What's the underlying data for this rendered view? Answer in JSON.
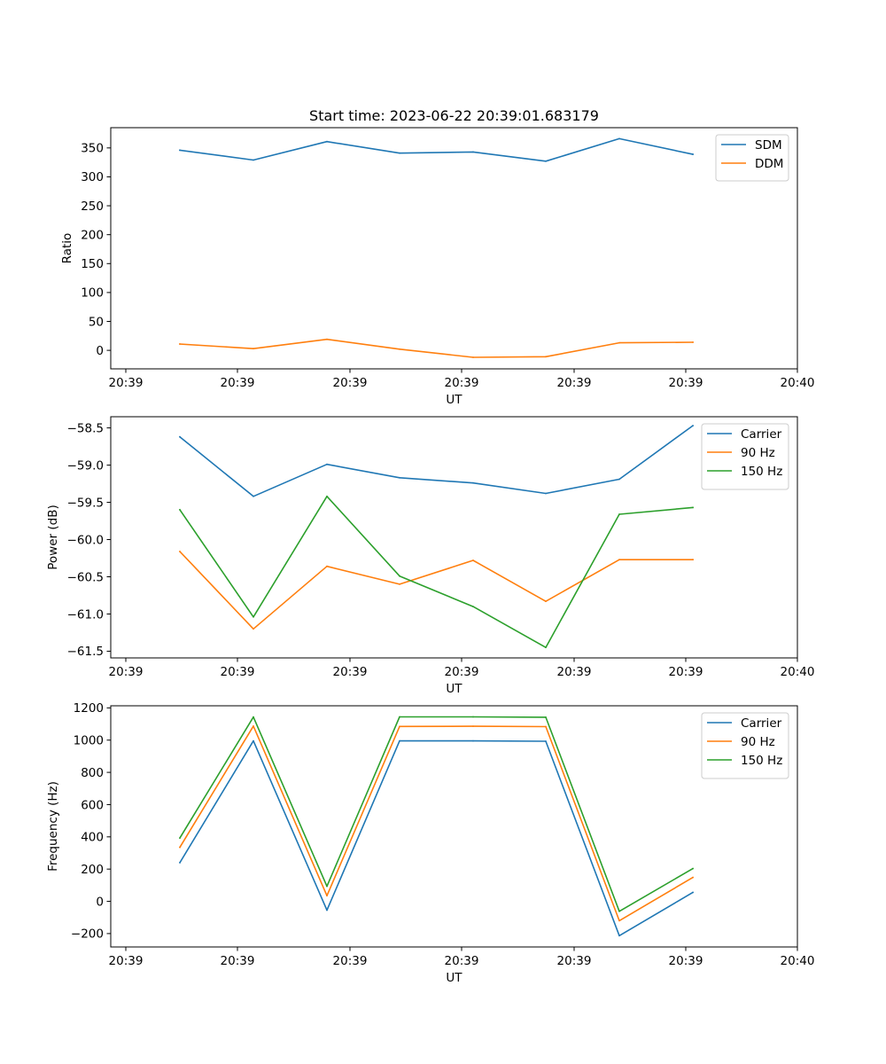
{
  "title": "Start time: 2023-06-22 20:39:01.683179",
  "colors": {
    "blue": "#1f77b4",
    "orange": "#ff7f0e",
    "green": "#2ca02c"
  },
  "chart_data": [
    {
      "type": "line",
      "title": "Start time: 2023-06-22 20:39:01.683179",
      "xlabel": "UT",
      "ylabel": "Ratio",
      "x_tick_labels": [
        "20:39",
        "20:39",
        "20:39",
        "20:39",
        "20:39",
        "20:39",
        "20:40"
      ],
      "y_ticks": [
        0,
        50,
        100,
        150,
        200,
        250,
        300,
        350
      ],
      "y_tick_labels": [
        "0",
        "50",
        "100",
        "150",
        "200",
        "250",
        "300",
        "350"
      ],
      "ylim": [
        -32,
        385
      ],
      "grid": false,
      "legend_position": "top-right",
      "series": [
        {
          "name": "SDM",
          "color": "#1f77b4",
          "values": [
            346,
            329,
            361,
            341,
            343,
            327,
            366,
            339
          ]
        },
        {
          "name": "DDM",
          "color": "#ff7f0e",
          "values": [
            11,
            3,
            19,
            2,
            -12,
            -11,
            13,
            14
          ]
        }
      ]
    },
    {
      "type": "line",
      "xlabel": "UT",
      "ylabel": "Power (dB)",
      "x_tick_labels": [
        "20:39",
        "20:39",
        "20:39",
        "20:39",
        "20:39",
        "20:39",
        "20:40"
      ],
      "y_ticks": [
        -61.5,
        -61.0,
        -60.5,
        -60.0,
        -59.5,
        -59.0,
        -58.5
      ],
      "y_tick_labels": [
        "−61.5",
        "−61.0",
        "−60.5",
        "−60.0",
        "−59.5",
        "−59.0",
        "−58.5"
      ],
      "ylim": [
        -61.59,
        -58.35
      ],
      "grid": false,
      "legend_position": "top-right",
      "series": [
        {
          "name": "Carrier",
          "color": "#1f77b4",
          "values": [
            -58.62,
            -59.42,
            -58.99,
            -59.17,
            -59.24,
            -59.38,
            -59.19,
            -58.47
          ]
        },
        {
          "name": "90 Hz",
          "color": "#ff7f0e",
          "values": [
            -60.16,
            -61.2,
            -60.36,
            -60.6,
            -60.28,
            -60.83,
            -60.27,
            -60.27
          ]
        },
        {
          "name": "150 Hz",
          "color": "#2ca02c",
          "values": [
            -59.6,
            -61.04,
            -59.42,
            -60.49,
            -60.9,
            -61.45,
            -59.66,
            -59.57
          ]
        }
      ]
    },
    {
      "type": "line",
      "xlabel": "UT",
      "ylabel": "Frequency (Hz)",
      "x_tick_labels": [
        "20:39",
        "20:39",
        "20:39",
        "20:39",
        "20:39",
        "20:39",
        "20:40"
      ],
      "y_ticks": [
        -200,
        0,
        200,
        400,
        600,
        800,
        1000,
        1200
      ],
      "y_tick_labels": [
        "−200",
        "0",
        "200",
        "400",
        "600",
        "800",
        "1000",
        "1200"
      ],
      "ylim": [
        -283,
        1213
      ],
      "grid": false,
      "legend_position": "top-right",
      "series": [
        {
          "name": "Carrier",
          "color": "#1f77b4",
          "values": [
            240,
            995,
            -55,
            995,
            995,
            993,
            -213,
            55
          ]
        },
        {
          "name": "90 Hz",
          "color": "#ff7f0e",
          "values": [
            335,
            1087,
            35,
            1085,
            1086,
            1084,
            -120,
            148
          ]
        },
        {
          "name": "150 Hz",
          "color": "#2ca02c",
          "values": [
            393,
            1143,
            93,
            1144,
            1144,
            1142,
            -62,
            203
          ]
        }
      ]
    }
  ]
}
